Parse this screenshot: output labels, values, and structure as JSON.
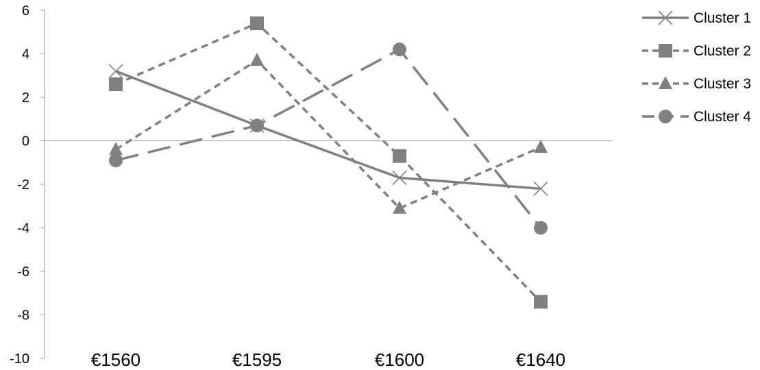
{
  "chart_data": {
    "type": "line",
    "categories": [
      "€1560",
      "€1595",
      "€1600",
      "€1640"
    ],
    "ylim": [
      -10,
      6
    ],
    "yticks": [
      6,
      4,
      2,
      0,
      -2,
      -4,
      -6,
      -8,
      -10
    ],
    "grid": false,
    "legend_position": "right",
    "series": [
      {
        "name": "Cluster 1",
        "values": [
          3.2,
          0.7,
          -1.7,
          -2.2
        ],
        "marker": "x",
        "line_style": "solid"
      },
      {
        "name": "Cluster 2",
        "values": [
          2.6,
          5.4,
          -0.7,
          -7.4
        ],
        "marker": "square",
        "line_style": "short-dash"
      },
      {
        "name": "Cluster 3",
        "values": [
          -0.4,
          3.7,
          -3.1,
          -0.3
        ],
        "marker": "triangle",
        "line_style": "short-dash"
      },
      {
        "name": "Cluster 4",
        "values": [
          -0.9,
          0.7,
          4.2,
          -4.0
        ],
        "marker": "circle",
        "line_style": "long-dash"
      }
    ],
    "colors": {
      "series": "#808080",
      "axis": "#a6a6a6"
    }
  }
}
